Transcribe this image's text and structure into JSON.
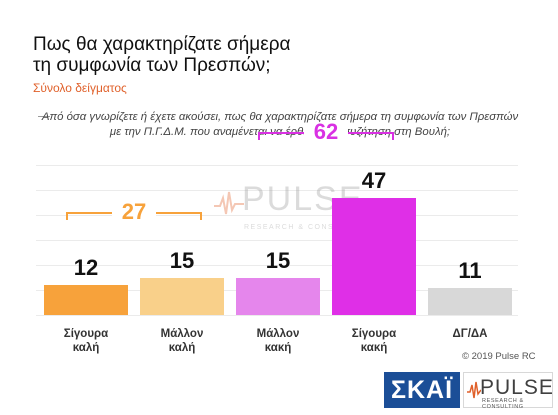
{
  "chart_data": {
    "type": "bar",
    "title_lines": [
      "Πως θα χαρακτηρίζατε σήμερα",
      "τη συμφωνία των Πρεσπών;"
    ],
    "subtitle": "Σύνολο δείγματος",
    "question": "Από όσα γνωρίζετε ή έχετε ακούσει, πως θα χαρακτηρίζατε σήμερα τη συμφωνία των Πρεσπών με την Π.Γ.Δ.Μ. που αναμένεται να έρθει προς συζήτηση στη Βουλή;",
    "categories": [
      {
        "lines": [
          "Σίγουρα",
          "καλή"
        ],
        "value": 12,
        "color": "#f7a23b"
      },
      {
        "lines": [
          "Μάλλον",
          "καλή"
        ],
        "value": 15,
        "color": "#f9d08a"
      },
      {
        "lines": [
          "Μάλλον",
          "κακή"
        ],
        "value": 15,
        "color": "#e586ec"
      },
      {
        "lines": [
          "Σίγουρα",
          "κακή"
        ],
        "value": 47,
        "color": "#df2fe7"
      },
      {
        "lines": [
          "ΔΓ/ΔΑ"
        ],
        "value": 11,
        "color": "#d8d8d8"
      }
    ],
    "groups": [
      {
        "total": 27,
        "from": 0,
        "to": 1,
        "color": "#f7a23b"
      },
      {
        "total": 62,
        "from": 2,
        "to": 3,
        "color": "#d931e3"
      }
    ],
    "ylim": [
      0,
      60
    ],
    "grid": true,
    "legend": "none"
  },
  "watermark": {
    "text": "PULSE",
    "sub": "RESEARCH & CONSULTING"
  },
  "copyright": "© 2019 Pulse RC",
  "logos": {
    "skai": {
      "text": "ΣΚΑΪ",
      "color": "#1b4e97"
    },
    "pulse": {
      "text": "PULSE",
      "sub": "RESEARCH & CONSULTING"
    }
  }
}
